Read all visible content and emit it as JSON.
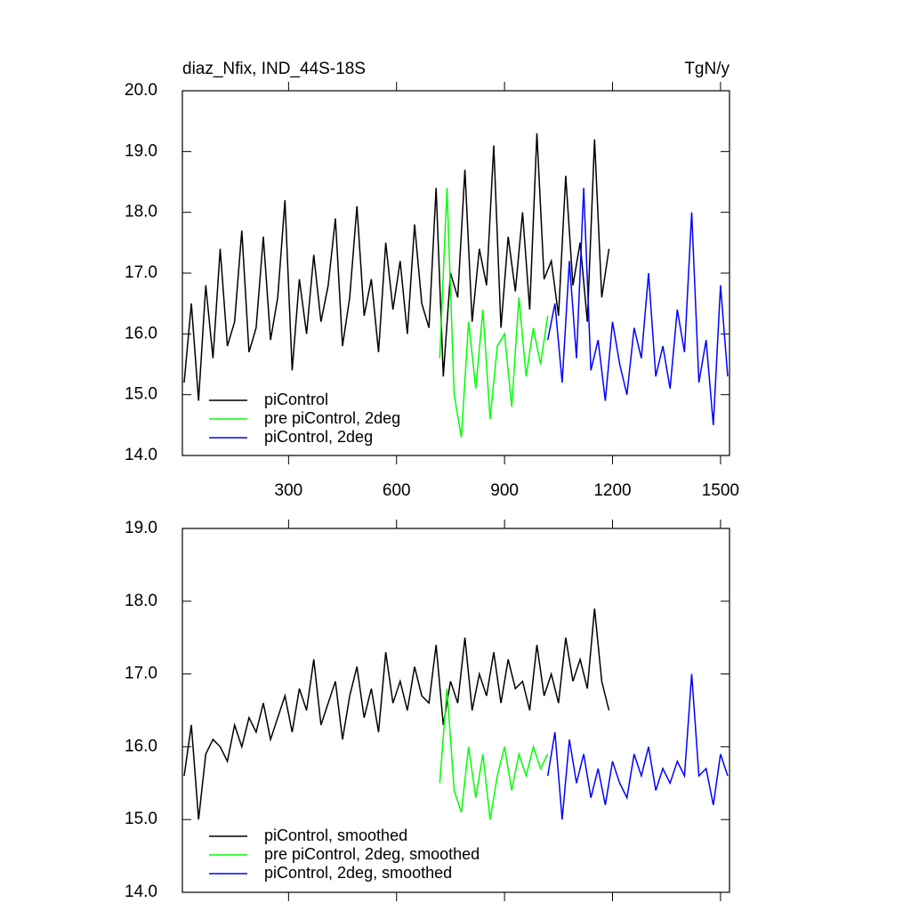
{
  "chart_data": [
    {
      "type": "line",
      "title": "diaz_Nfix, IND_44S-18S",
      "units": "TgN/y",
      "xlim": [
        5,
        1525
      ],
      "ylim": [
        14,
        20
      ],
      "xticks": [
        300,
        600,
        900,
        1200,
        1500
      ],
      "show_xtick_labels": true,
      "yticks": [
        {
          "value": 14,
          "label": "14.0"
        },
        {
          "value": 15,
          "label": "15.0"
        },
        {
          "value": 16,
          "label": "16.0"
        },
        {
          "value": 17,
          "label": "17.0"
        },
        {
          "value": 18,
          "label": "18.0"
        },
        {
          "value": 19,
          "label": "19.0"
        },
        {
          "value": 20,
          "label": "20.0"
        }
      ],
      "series": [
        {
          "name": "piControl",
          "color": "#000000",
          "x": [
            10,
            30,
            50,
            70,
            90,
            110,
            130,
            150,
            170,
            190,
            210,
            230,
            250,
            270,
            290,
            310,
            330,
            350,
            370,
            390,
            410,
            430,
            450,
            470,
            490,
            510,
            530,
            550,
            570,
            590,
            610,
            630,
            650,
            670,
            690,
            710,
            730,
            750,
            770,
            790,
            810,
            830,
            850,
            870,
            890,
            910,
            930,
            950,
            970,
            990,
            1010,
            1030,
            1050,
            1070,
            1090,
            1110,
            1130,
            1150,
            1170,
            1190
          ],
          "values": [
            15.2,
            16.5,
            14.9,
            16.8,
            15.6,
            17.4,
            15.8,
            16.2,
            17.7,
            15.7,
            16.1,
            17.6,
            15.9,
            16.6,
            18.2,
            15.4,
            16.9,
            16.0,
            17.3,
            16.2,
            16.8,
            17.9,
            15.8,
            16.6,
            18.1,
            16.3,
            16.9,
            15.7,
            17.5,
            16.4,
            17.2,
            16.0,
            17.8,
            16.5,
            16.1,
            18.4,
            15.3,
            17.0,
            16.6,
            18.7,
            16.2,
            17.4,
            16.8,
            19.1,
            16.1,
            17.6,
            16.7,
            18.0,
            16.4,
            19.3,
            16.9,
            17.2,
            16.3,
            18.6,
            16.8,
            17.5,
            16.2,
            19.2,
            16.6,
            17.4
          ]
        },
        {
          "name": "pre piControl, 2deg",
          "color": "#00ff00",
          "x": [
            720,
            740,
            760,
            780,
            800,
            820,
            840,
            860,
            880,
            900,
            920,
            940,
            960,
            980,
            1000,
            1020
          ],
          "values": [
            15.6,
            18.4,
            15.0,
            14.3,
            16.2,
            15.1,
            16.4,
            14.6,
            15.8,
            16.0,
            14.8,
            16.6,
            15.3,
            16.1,
            15.5,
            16.3
          ]
        },
        {
          "name": "piControl, 2deg",
          "color": "#0000ff",
          "x": [
            1020,
            1040,
            1060,
            1080,
            1100,
            1120,
            1140,
            1160,
            1180,
            1200,
            1220,
            1240,
            1260,
            1280,
            1300,
            1320,
            1340,
            1360,
            1380,
            1400,
            1420,
            1440,
            1460,
            1480,
            1500,
            1520
          ],
          "values": [
            15.9,
            16.5,
            15.2,
            17.2,
            15.6,
            18.4,
            15.4,
            15.9,
            14.9,
            16.2,
            15.5,
            15.0,
            16.1,
            15.6,
            17.0,
            15.3,
            15.8,
            15.1,
            16.4,
            15.7,
            18.0,
            15.2,
            15.9,
            14.5,
            16.8,
            15.3
          ]
        }
      ]
    },
    {
      "type": "line",
      "xlim": [
        5,
        1525
      ],
      "ylim": [
        14,
        19
      ],
      "xticks": [
        300,
        600,
        900,
        1200,
        1500
      ],
      "show_xtick_labels": false,
      "yticks": [
        {
          "value": 14,
          "label": "14.0"
        },
        {
          "value": 15,
          "label": "15.0"
        },
        {
          "value": 16,
          "label": "16.0"
        },
        {
          "value": 17,
          "label": "17.0"
        },
        {
          "value": 18,
          "label": "18.0"
        },
        {
          "value": 19,
          "label": "19.0"
        }
      ],
      "series": [
        {
          "name": "piControl, smoothed",
          "color": "#000000",
          "x": [
            10,
            30,
            50,
            70,
            90,
            110,
            130,
            150,
            170,
            190,
            210,
            230,
            250,
            270,
            290,
            310,
            330,
            350,
            370,
            390,
            410,
            430,
            450,
            470,
            490,
            510,
            530,
            550,
            570,
            590,
            610,
            630,
            650,
            670,
            690,
            710,
            730,
            750,
            770,
            790,
            810,
            830,
            850,
            870,
            890,
            910,
            930,
            950,
            970,
            990,
            1010,
            1030,
            1050,
            1070,
            1090,
            1110,
            1130,
            1150,
            1170,
            1190
          ],
          "values": [
            15.6,
            16.3,
            15.0,
            15.9,
            16.1,
            16.0,
            15.8,
            16.3,
            16.0,
            16.4,
            16.2,
            16.6,
            16.1,
            16.4,
            16.7,
            16.2,
            16.8,
            16.5,
            17.2,
            16.3,
            16.6,
            16.9,
            16.1,
            16.7,
            17.1,
            16.4,
            16.8,
            16.2,
            17.3,
            16.6,
            16.9,
            16.5,
            17.1,
            16.7,
            16.6,
            17.4,
            16.3,
            16.9,
            16.6,
            17.5,
            16.5,
            17.0,
            16.7,
            17.3,
            16.6,
            17.2,
            16.8,
            16.9,
            16.5,
            17.4,
            16.7,
            17.0,
            16.6,
            17.5,
            16.9,
            17.2,
            16.8,
            17.9,
            16.9,
            16.5
          ]
        },
        {
          "name": "pre piControl, 2deg, smoothed",
          "color": "#00ff00",
          "x": [
            720,
            740,
            760,
            780,
            800,
            820,
            840,
            860,
            880,
            900,
            920,
            940,
            960,
            980,
            1000,
            1020
          ],
          "values": [
            15.5,
            16.8,
            15.4,
            15.1,
            16.0,
            15.3,
            15.9,
            15.0,
            15.6,
            16.0,
            15.4,
            15.9,
            15.6,
            16.0,
            15.7,
            15.9
          ]
        },
        {
          "name": "piControl, 2deg, smoothed",
          "color": "#0000ff",
          "x": [
            1020,
            1040,
            1060,
            1080,
            1100,
            1120,
            1140,
            1160,
            1180,
            1200,
            1220,
            1240,
            1260,
            1280,
            1300,
            1320,
            1340,
            1360,
            1380,
            1400,
            1420,
            1440,
            1460,
            1480,
            1500,
            1520
          ],
          "values": [
            15.6,
            16.2,
            15.0,
            16.1,
            15.5,
            15.9,
            15.3,
            15.7,
            15.2,
            15.8,
            15.5,
            15.3,
            15.9,
            15.6,
            16.0,
            15.4,
            15.7,
            15.5,
            15.8,
            15.6,
            17.0,
            15.6,
            15.7,
            15.2,
            15.9,
            15.6
          ]
        }
      ]
    }
  ]
}
